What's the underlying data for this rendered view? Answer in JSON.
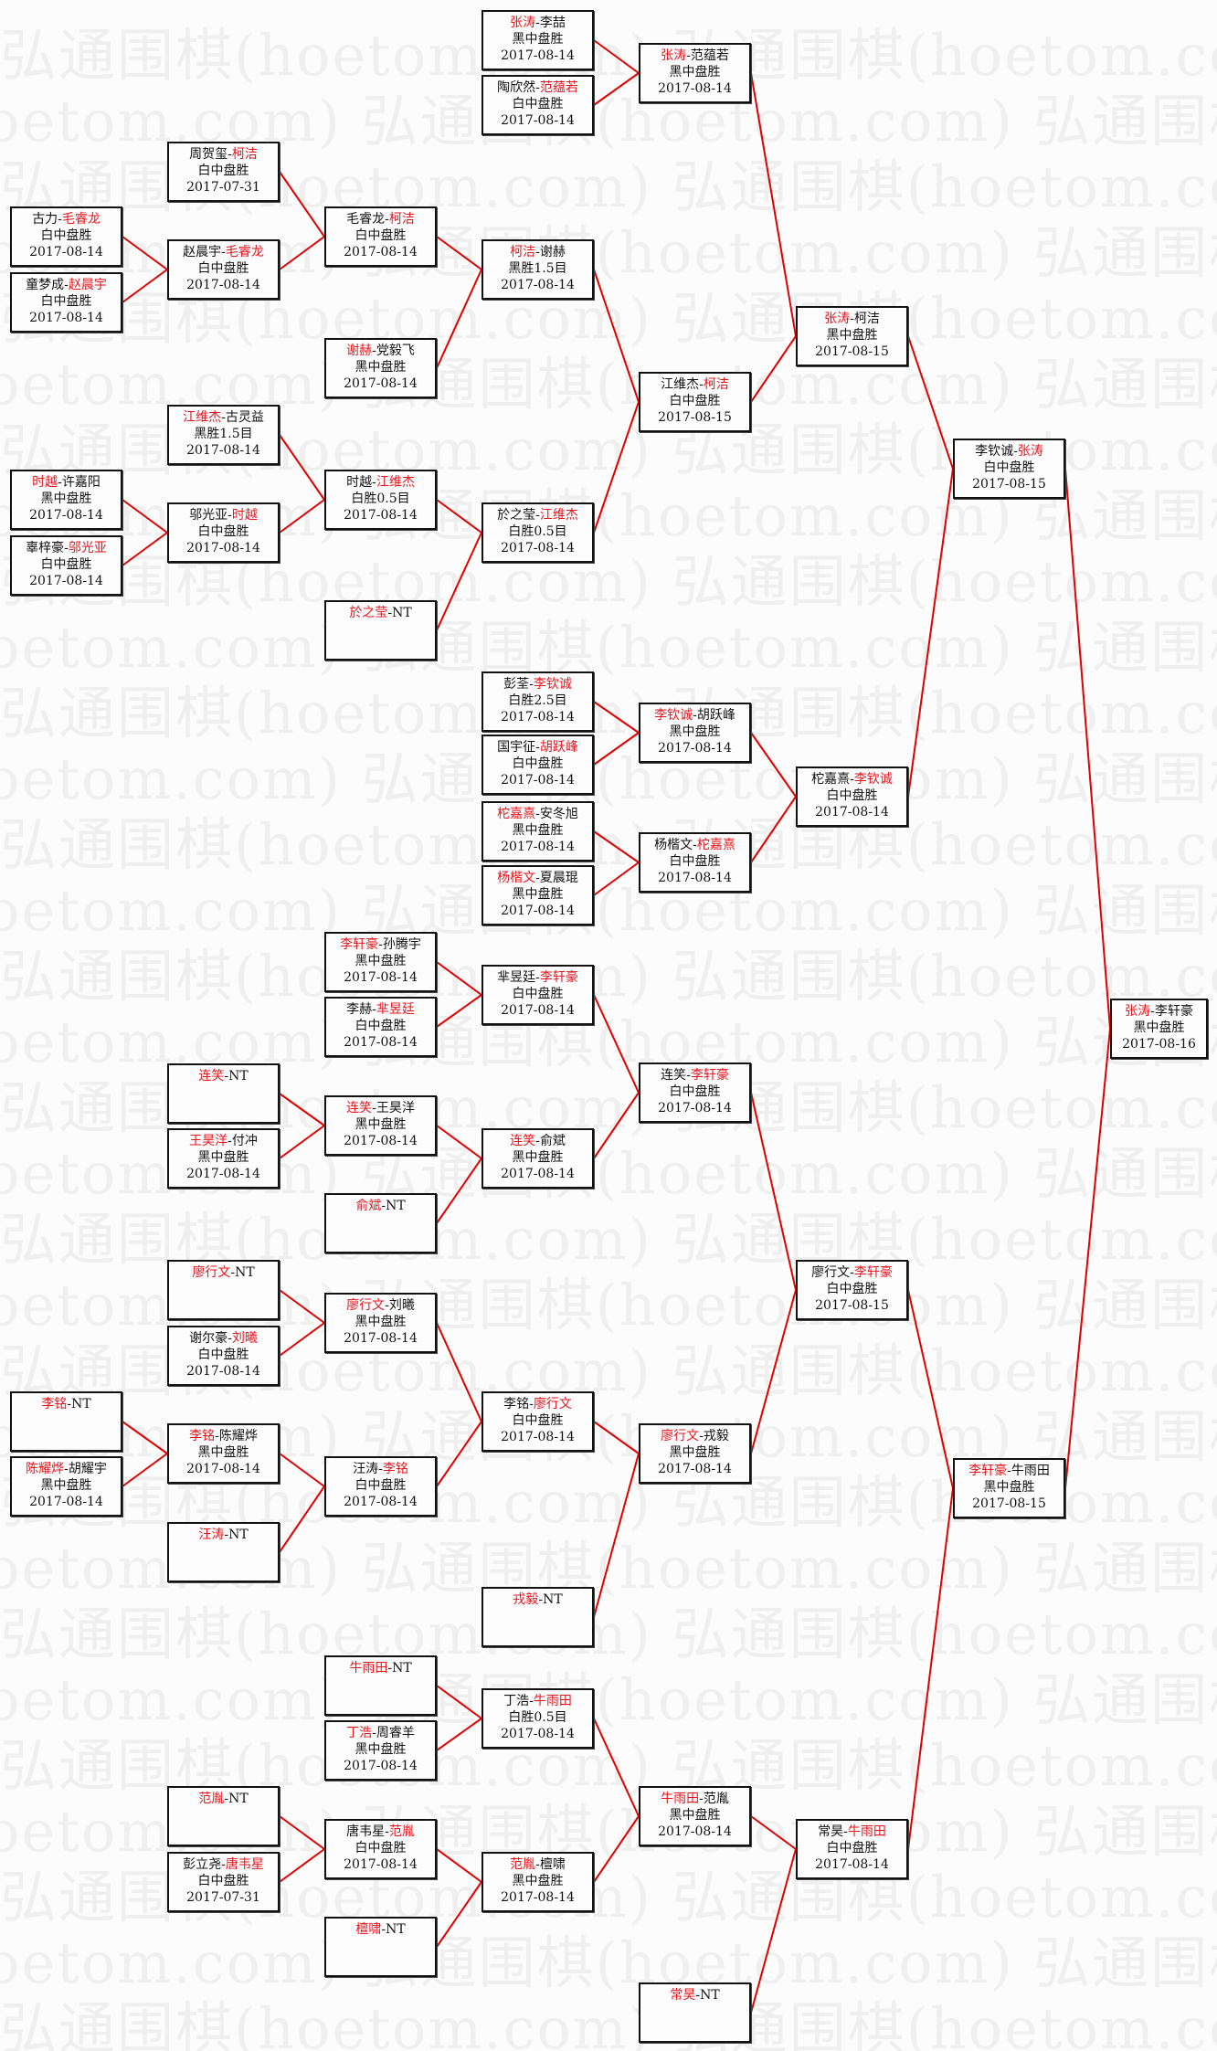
{
  "watermark": "弘通围棋(hoetom.com)",
  "colors": {
    "winner": "#e8141c",
    "connector": "#e00000",
    "border": "#111111"
  },
  "matches": [
    {
      "p": [
        "张涛",
        "李喆"
      ],
      "w": 0,
      "r": "黑中盘胜",
      "d": "2017-08-14"
    },
    {
      "p": [
        "陶欣然",
        "范蕴若"
      ],
      "w": 1,
      "r": "白中盘胜",
      "d": "2017-08-14"
    },
    {
      "p": [
        "周贺玺",
        "柯洁"
      ],
      "w": 1,
      "r": "白中盘胜",
      "d": "2017-07-31"
    },
    {
      "p": [
        "古力",
        "毛睿龙"
      ],
      "w": 1,
      "r": "白中盘胜",
      "d": "2017-08-14"
    },
    {
      "p": [
        "童梦成",
        "赵晨宇"
      ],
      "w": 1,
      "r": "白中盘胜",
      "d": "2017-08-14"
    },
    {
      "p": [
        "赵晨宇",
        "毛睿龙"
      ],
      "w": 1,
      "r": "白中盘胜",
      "d": "2017-08-14"
    },
    {
      "p": [
        "毛睿龙",
        "柯洁"
      ],
      "w": 1,
      "r": "白中盘胜",
      "d": "2017-08-14"
    },
    {
      "p": [
        "谢赫",
        "党毅飞"
      ],
      "w": 0,
      "r": "黑中盘胜",
      "d": "2017-08-14"
    },
    {
      "p": [
        "柯洁",
        "谢赫"
      ],
      "w": 0,
      "r": "黑胜1.5目",
      "d": "2017-08-14"
    },
    {
      "p": [
        "张涛",
        "范蕴若"
      ],
      "w": 0,
      "r": "黑中盘胜",
      "d": "2017-08-14"
    },
    {
      "p": [
        "江维杰",
        "古灵益"
      ],
      "w": 0,
      "r": "黑胜1.5目",
      "d": "2017-08-14"
    },
    {
      "p": [
        "时越",
        "许嘉阳"
      ],
      "w": 0,
      "r": "黑中盘胜",
      "d": "2017-08-14"
    },
    {
      "p": [
        "辜梓豪",
        "邬光亚"
      ],
      "w": 1,
      "r": "白中盘胜",
      "d": "2017-08-14"
    },
    {
      "p": [
        "邬光亚",
        "时越"
      ],
      "w": 1,
      "r": "白中盘胜",
      "d": "2017-08-14"
    },
    {
      "p": [
        "时越",
        "江维杰"
      ],
      "w": 1,
      "r": "白胜0.5目",
      "d": "2017-08-14"
    },
    {
      "p": [
        "於之莹",
        "NT"
      ],
      "w": 0
    },
    {
      "p": [
        "於之莹",
        "江维杰"
      ],
      "w": 1,
      "r": "白胜0.5目",
      "d": "2017-08-14"
    },
    {
      "p": [
        "江维杰",
        "柯洁"
      ],
      "w": 1,
      "r": "白中盘胜",
      "d": "2017-08-15"
    },
    {
      "p": [
        "张涛",
        "柯洁"
      ],
      "w": 0,
      "r": "黑中盘胜",
      "d": "2017-08-15"
    },
    {
      "p": [
        "彭荃",
        "李钦诚"
      ],
      "w": 1,
      "r": "白胜2.5目",
      "d": "2017-08-14"
    },
    {
      "p": [
        "国宇征",
        "胡跃峰"
      ],
      "w": 1,
      "r": "白中盘胜",
      "d": "2017-08-14"
    },
    {
      "p": [
        "柁嘉熹",
        "安冬旭"
      ],
      "w": 0,
      "r": "黑中盘胜",
      "d": "2017-08-14"
    },
    {
      "p": [
        "杨楷文",
        "夏晨琨"
      ],
      "w": 0,
      "r": "黑中盘胜",
      "d": "2017-08-14"
    },
    {
      "p": [
        "李钦诚",
        "胡跃峰"
      ],
      "w": 0,
      "r": "黑中盘胜",
      "d": "2017-08-14"
    },
    {
      "p": [
        "杨楷文",
        "柁嘉熹"
      ],
      "w": 1,
      "r": "白中盘胜",
      "d": "2017-08-14"
    },
    {
      "p": [
        "柁嘉熹",
        "李钦诚"
      ],
      "w": 1,
      "r": "白中盘胜",
      "d": "2017-08-14"
    },
    {
      "p": [
        "李钦诚",
        "张涛"
      ],
      "w": 1,
      "r": "白中盘胜",
      "d": "2017-08-15"
    },
    {
      "p": [
        "李轩豪",
        "孙腾宇"
      ],
      "w": 0,
      "r": "黑中盘胜",
      "d": "2017-08-14"
    },
    {
      "p": [
        "李赫",
        "芈昱廷"
      ],
      "w": 1,
      "r": "白中盘胜",
      "d": "2017-08-14"
    },
    {
      "p": [
        "芈昱廷",
        "李轩豪"
      ],
      "w": 1,
      "r": "白中盘胜",
      "d": "2017-08-14"
    },
    {
      "p": [
        "连笑",
        "NT"
      ],
      "w": 0
    },
    {
      "p": [
        "王昊洋",
        "付冲"
      ],
      "w": 0,
      "r": "黑中盘胜",
      "d": "2017-08-14"
    },
    {
      "p": [
        "连笑",
        "王昊洋"
      ],
      "w": 0,
      "r": "黑中盘胜",
      "d": "2017-08-14"
    },
    {
      "p": [
        "俞斌",
        "NT"
      ],
      "w": 0
    },
    {
      "p": [
        "连笑",
        "俞斌"
      ],
      "w": 0,
      "r": "黑中盘胜",
      "d": "2017-08-14"
    },
    {
      "p": [
        "连笑",
        "李轩豪"
      ],
      "w": 1,
      "r": "白中盘胜",
      "d": "2017-08-14"
    },
    {
      "p": [
        "廖行文",
        "NT"
      ],
      "w": 0
    },
    {
      "p": [
        "谢尔豪",
        "刘曦"
      ],
      "w": 1,
      "r": "白中盘胜",
      "d": "2017-08-14"
    },
    {
      "p": [
        "廖行文",
        "刘曦"
      ],
      "w": 0,
      "r": "黑中盘胜",
      "d": "2017-08-14"
    },
    {
      "p": [
        "李铭",
        "NT"
      ],
      "w": 0
    },
    {
      "p": [
        "陈耀烨",
        "胡耀宇"
      ],
      "w": 0,
      "r": "黑中盘胜",
      "d": "2017-08-14"
    },
    {
      "p": [
        "李铭",
        "陈耀烨"
      ],
      "w": 0,
      "r": "黑中盘胜",
      "d": "2017-08-14"
    },
    {
      "p": [
        "汪涛",
        "NT"
      ],
      "w": 0
    },
    {
      "p": [
        "汪涛",
        "李铭"
      ],
      "w": 1,
      "r": "白中盘胜",
      "d": "2017-08-14"
    },
    {
      "p": [
        "李铭",
        "廖行文"
      ],
      "w": 1,
      "r": "白中盘胜",
      "d": "2017-08-14"
    },
    {
      "p": [
        "戎毅",
        "NT"
      ],
      "w": 0
    },
    {
      "p": [
        "廖行文",
        "戎毅"
      ],
      "w": 0,
      "r": "黑中盘胜",
      "d": "2017-08-14"
    },
    {
      "p": [
        "廖行文",
        "李轩豪"
      ],
      "w": 1,
      "r": "白中盘胜",
      "d": "2017-08-15"
    },
    {
      "p": [
        "牛雨田",
        "NT"
      ],
      "w": 0
    },
    {
      "p": [
        "丁浩",
        "周睿羊"
      ],
      "w": 0,
      "r": "黑中盘胜",
      "d": "2017-08-14"
    },
    {
      "p": [
        "丁浩",
        "牛雨田"
      ],
      "w": 1,
      "r": "白胜0.5目",
      "d": "2017-08-14"
    },
    {
      "p": [
        "范胤",
        "NT"
      ],
      "w": 0
    },
    {
      "p": [
        "彭立尧",
        "唐韦星"
      ],
      "w": 1,
      "r": "白中盘胜",
      "d": "2017-07-31"
    },
    {
      "p": [
        "唐韦星",
        "范胤"
      ],
      "w": 1,
      "r": "白中盘胜",
      "d": "2017-08-14"
    },
    {
      "p": [
        "檀啸",
        "NT"
      ],
      "w": 0
    },
    {
      "p": [
        "范胤",
        "檀啸"
      ],
      "w": 0,
      "r": "黑中盘胜",
      "d": "2017-08-14"
    },
    {
      "p": [
        "牛雨田",
        "范胤"
      ],
      "w": 0,
      "r": "黑中盘胜",
      "d": "2017-08-14"
    },
    {
      "p": [
        "常昊",
        "NT"
      ],
      "w": 0
    },
    {
      "p": [
        "常昊",
        "牛雨田"
      ],
      "w": 1,
      "r": "白中盘胜",
      "d": "2017-08-14"
    },
    {
      "p": [
        "李轩豪",
        "牛雨田"
      ],
      "w": 0,
      "r": "黑中盘胜",
      "d": "2017-08-15"
    },
    {
      "p": [
        "张涛",
        "李轩豪"
      ],
      "w": 0,
      "r": "黑中盘胜",
      "d": "2017-08-16"
    }
  ]
}
